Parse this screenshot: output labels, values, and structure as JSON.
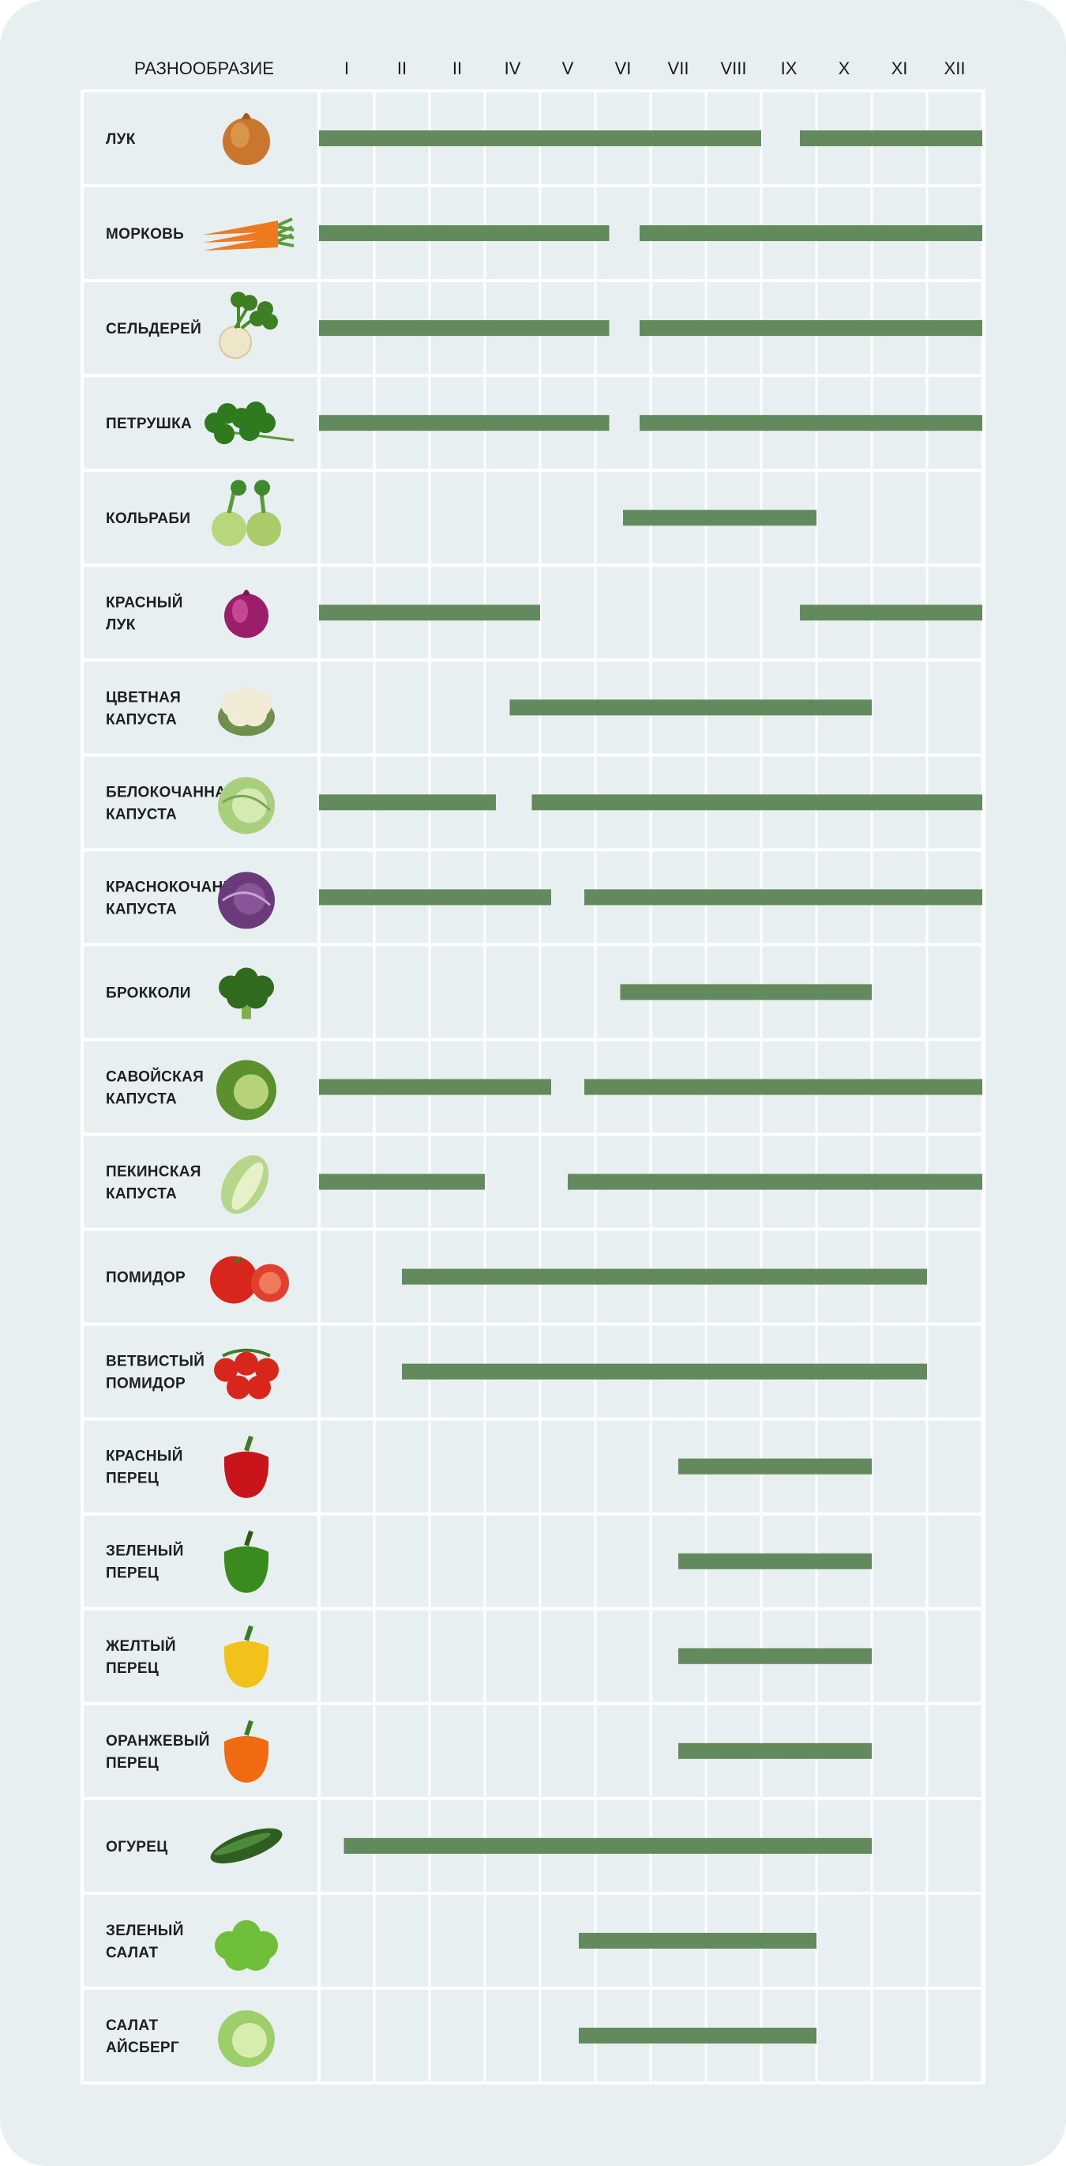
{
  "chart_data": {
    "type": "gantt",
    "header_label": "РАЗНООБРАЗИЕ",
    "months": [
      "I",
      "II",
      "II",
      "IV",
      "V",
      "VI",
      "VII",
      "VIII",
      "IX",
      "X",
      "XI",
      "XII"
    ],
    "bar_color": "#628a5c",
    "grid_color": "#ffffff",
    "background_color": "#e8eff1",
    "rows": [
      {
        "name": "ЛУК",
        "icon": "onion-icon",
        "ranges": [
          [
            0,
            8
          ],
          [
            8.7,
            12
          ]
        ]
      },
      {
        "name": "МОРКОВЬ",
        "icon": "carrot-icon",
        "ranges": [
          [
            0,
            5.25
          ],
          [
            5.8,
            12
          ]
        ]
      },
      {
        "name": "СЕЛЬДЕРЕЙ",
        "icon": "celery-icon",
        "ranges": [
          [
            0,
            5.25
          ],
          [
            5.8,
            12
          ]
        ]
      },
      {
        "name": "ПЕТРУШКА",
        "icon": "parsley-icon",
        "ranges": [
          [
            0,
            5.25
          ],
          [
            5.8,
            12
          ]
        ]
      },
      {
        "name": "КОЛЬРАБИ",
        "icon": "kohlrabi-icon",
        "ranges": [
          [
            5.5,
            9
          ]
        ]
      },
      {
        "name": "КРАСНЫЙ ЛУК",
        "icon": "red-onion-icon",
        "ranges": [
          [
            0,
            4
          ],
          [
            8.7,
            12
          ]
        ]
      },
      {
        "name": "ЦВЕТНАЯ КАПУСТА",
        "icon": "cauliflower-icon",
        "ranges": [
          [
            3.45,
            10
          ]
        ]
      },
      {
        "name": "БЕЛОКОЧАННАЯ КАПУСТА",
        "icon": "white-cabbage-icon",
        "ranges": [
          [
            0,
            3.2
          ],
          [
            3.85,
            12
          ]
        ]
      },
      {
        "name": "КРАСНОКОЧАННАЯ КАПУСТА",
        "icon": "red-cabbage-icon",
        "ranges": [
          [
            0,
            4.2
          ],
          [
            4.8,
            12
          ]
        ]
      },
      {
        "name": "БРОККОЛИ",
        "icon": "broccoli-icon",
        "ranges": [
          [
            5.45,
            10
          ]
        ]
      },
      {
        "name": "САВОЙСКАЯ КАПУСТА",
        "icon": "savoy-cabbage-icon",
        "ranges": [
          [
            0,
            4.2
          ],
          [
            4.8,
            12
          ]
        ]
      },
      {
        "name": "ПЕКИНСКАЯ КАПУСТА",
        "icon": "napa-cabbage-icon",
        "ranges": [
          [
            0,
            3
          ],
          [
            4.5,
            12
          ]
        ]
      },
      {
        "name": "ПОМИДОР",
        "icon": "tomato-icon",
        "ranges": [
          [
            1.5,
            11
          ]
        ]
      },
      {
        "name": "ВЕТВИСТЫЙ ПОМИДОР",
        "icon": "vine-tomato-icon",
        "ranges": [
          [
            1.5,
            11
          ]
        ]
      },
      {
        "name": "КРАСНЫЙ ПЕРЕЦ",
        "icon": "red-pepper-icon",
        "ranges": [
          [
            6.5,
            10
          ]
        ]
      },
      {
        "name": "ЗЕЛЕНЫЙ ПЕРЕЦ",
        "icon": "green-pepper-icon",
        "ranges": [
          [
            6.5,
            10
          ]
        ]
      },
      {
        "name": "ЖЕЛТЫЙ ПЕРЕЦ",
        "icon": "yellow-pepper-icon",
        "ranges": [
          [
            6.5,
            10
          ]
        ]
      },
      {
        "name": "ОРАНЖЕВЫЙ ПЕРЕЦ",
        "icon": "orange-pepper-icon",
        "ranges": [
          [
            6.5,
            10
          ]
        ]
      },
      {
        "name": "ОГУРЕЦ",
        "icon": "cucumber-icon",
        "ranges": [
          [
            0.45,
            10
          ]
        ]
      },
      {
        "name": "ЗЕЛЕНЫЙ САЛАТ",
        "icon": "lettuce-icon",
        "ranges": [
          [
            4.7,
            9
          ]
        ]
      },
      {
        "name": "САЛАТ АЙСБЕРГ",
        "icon": "iceberg-lettuce-icon",
        "ranges": [
          [
            4.7,
            9
          ]
        ]
      }
    ]
  }
}
